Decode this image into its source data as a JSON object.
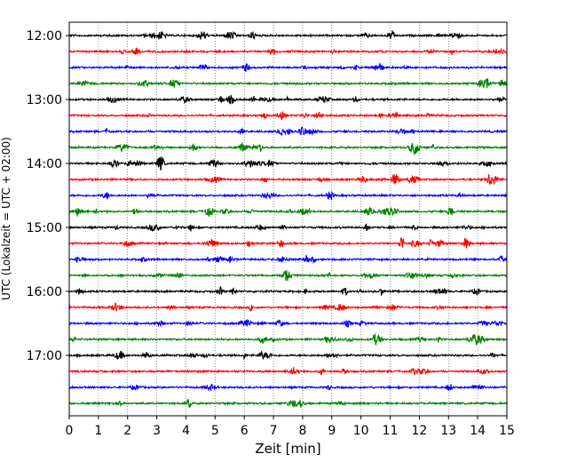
{
  "chart_data": {
    "type": "line",
    "subtype": "helicorder",
    "title": "",
    "xlabel": "Zeit  [min]",
    "ylabel": "UTC (Lokalzeit = UTC + 02:00)",
    "xlim": [
      0,
      15
    ],
    "x_ticks": [
      0,
      1,
      2,
      3,
      4,
      5,
      6,
      7,
      8,
      9,
      10,
      11,
      12,
      13,
      14,
      15
    ],
    "x_tick_labels": [
      "0",
      "1",
      "2",
      "3",
      "4",
      "5",
      "6",
      "7",
      "8",
      "9",
      "10",
      "11",
      "12",
      "13",
      "14",
      "15"
    ],
    "x_grid": true,
    "grid_style": "dotted",
    "row_interval_min": 15,
    "y_tick_labels": [
      "12:00",
      "13:00",
      "14:00",
      "15:00",
      "16:00",
      "17:00"
    ],
    "row_colors": [
      "#000000",
      "#ff0000",
      "#0000ff",
      "#008000"
    ],
    "rows": [
      "12:00",
      "12:15",
      "12:30",
      "12:45",
      "13:00",
      "13:15",
      "13:30",
      "13:45",
      "14:00",
      "14:15",
      "14:30",
      "14:45",
      "15:00",
      "15:15",
      "15:30",
      "15:45",
      "16:00",
      "16:15",
      "16:30",
      "16:45",
      "17:00",
      "17:15",
      "17:30",
      "17:45"
    ],
    "trace_baseline": 0
  }
}
